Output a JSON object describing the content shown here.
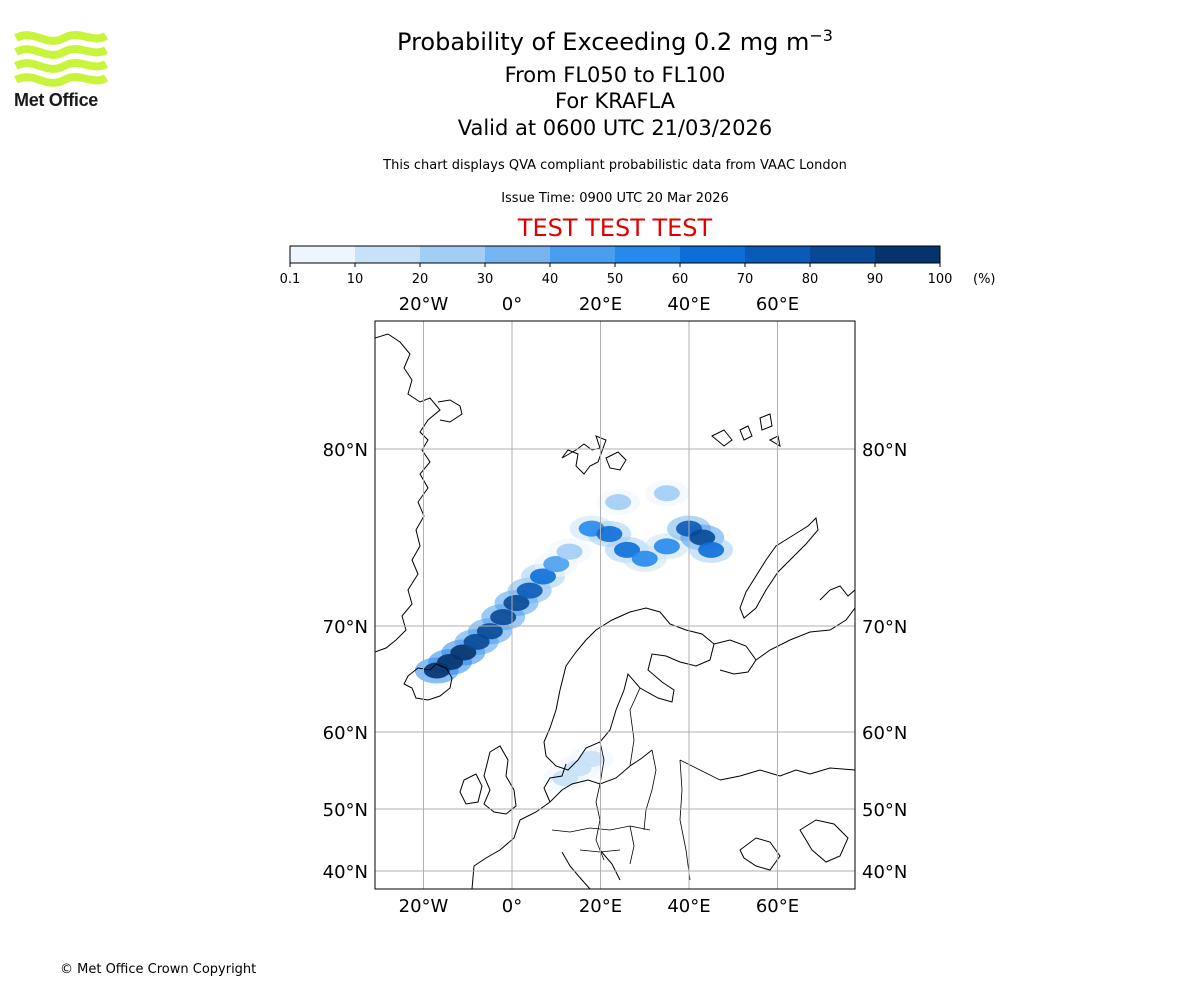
{
  "branding": {
    "logo_text": "Met Office",
    "copyright": "© Met Office Crown Copyright",
    "logo_color": "#c8f53c"
  },
  "header": {
    "title_prefix": "Probability of Exceeding 0.2 mg m",
    "title_exponent": "−3",
    "flight_levels": "From FL050 to FL100",
    "volcano": "For KRAFLA",
    "valid_time": "Valid at 0600 UTC 21/03/2026",
    "subtitle": "This chart displays QVA compliant probabilistic data from VAAC London",
    "issue_time": "Issue Time: 0900 UTC 20 Mar 2026",
    "test_banner": "TEST TEST TEST",
    "test_color": "#e00000"
  },
  "colorbar": {
    "tick_labels": [
      "0.1",
      "10",
      "20",
      "30",
      "40",
      "50",
      "60",
      "70",
      "80",
      "90",
      "100"
    ],
    "unit": "(%)",
    "colors": [
      "#eef5fd",
      "#c7e1f8",
      "#a2cdf5",
      "#74b4f1",
      "#4a9eef",
      "#2689ec",
      "#0c6ed8",
      "#0a5ab8",
      "#084896",
      "#06336c"
    ]
  },
  "map": {
    "lon_labels": [
      "20°W",
      "0°",
      "20°E",
      "40°E",
      "60°E"
    ],
    "lat_labels": [
      "80°N",
      "70°N",
      "60°N",
      "50°N",
      "40°N"
    ],
    "grid_color": "#b0b0b0",
    "coast_color": "#000000"
  },
  "chart_data": {
    "type": "heatmap",
    "title": "Probability of Exceeding 0.2 mg m−3",
    "legend": "colorbar-top",
    "grid": true,
    "value_unit": "%",
    "plumes": [
      {
        "lon": -17.0,
        "lat": 65.8,
        "prob": 95
      },
      {
        "lon": -14.0,
        "lat": 66.6,
        "prob": 92
      },
      {
        "lon": -11.0,
        "lat": 67.5,
        "prob": 90
      },
      {
        "lon": -8.0,
        "lat": 68.5,
        "prob": 88
      },
      {
        "lon": -5.0,
        "lat": 69.5,
        "prob": 85
      },
      {
        "lon": -2.0,
        "lat": 70.5,
        "prob": 82
      },
      {
        "lon": 1.0,
        "lat": 71.3,
        "prob": 80
      },
      {
        "lon": 4.0,
        "lat": 72.0,
        "prob": 75
      },
      {
        "lon": 7.0,
        "lat": 72.8,
        "prob": 60
      },
      {
        "lon": 10.0,
        "lat": 73.5,
        "prob": 40
      },
      {
        "lon": 13.0,
        "lat": 74.2,
        "prob": 25
      },
      {
        "lon": 18.0,
        "lat": 75.5,
        "prob": 50
      },
      {
        "lon": 22.0,
        "lat": 75.2,
        "prob": 60
      },
      {
        "lon": 26.0,
        "lat": 74.3,
        "prob": 65
      },
      {
        "lon": 30.0,
        "lat": 73.8,
        "prob": 55
      },
      {
        "lon": 35.0,
        "lat": 74.5,
        "prob": 50
      },
      {
        "lon": 40.0,
        "lat": 75.5,
        "prob": 75
      },
      {
        "lon": 43.0,
        "lat": 75.0,
        "prob": 85
      },
      {
        "lon": 45.0,
        "lat": 74.3,
        "prob": 60
      },
      {
        "lon": 24.0,
        "lat": 77.0,
        "prob": 20
      },
      {
        "lon": 35.0,
        "lat": 77.5,
        "prob": 25
      },
      {
        "lon": 15.0,
        "lat": 55.3,
        "prob": 15
      },
      {
        "lon": 18.0,
        "lat": 56.5,
        "prob": 12
      },
      {
        "lon": 12.0,
        "lat": 54.0,
        "prob": 10
      }
    ]
  }
}
